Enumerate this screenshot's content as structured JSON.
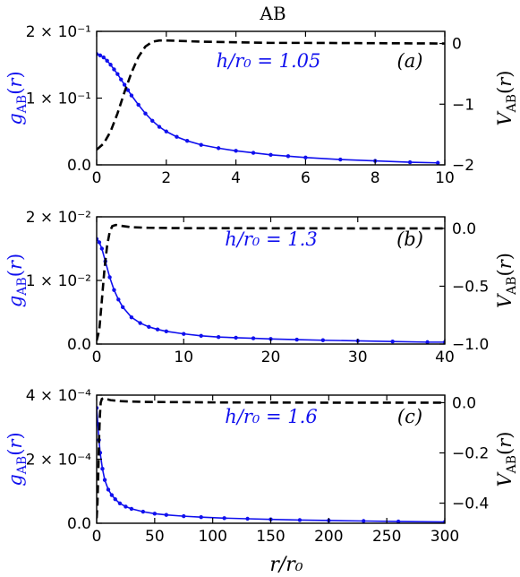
{
  "figure": {
    "title": "AB",
    "xlabel": "r/r₀"
  },
  "colors": {
    "g_series": "#1010ee",
    "v_series": "#000000"
  },
  "chart_data": [
    {
      "type": "line",
      "panel_label": "(a)",
      "annotation": "h/r₀ = 1.05",
      "xlim": [
        0,
        10
      ],
      "x_ticks": [
        0,
        2,
        4,
        6,
        8,
        10
      ],
      "left_ylabel": "g_AB(r)",
      "left_ylim": [
        0,
        0.2
      ],
      "left_ticks": [
        {
          "v": 0,
          "label": "0.0"
        },
        {
          "v": 0.1,
          "label": "1 × 10⁻¹"
        },
        {
          "v": 0.2,
          "label": "2 × 10⁻¹"
        }
      ],
      "right_ylabel": "V_AB(r)",
      "right_ylim": [
        -2,
        0.2
      ],
      "right_ticks": [
        {
          "v": 0,
          "label": "0"
        },
        {
          "v": -1,
          "label": "−1"
        },
        {
          "v": -2,
          "label": "−2"
        }
      ],
      "series": [
        {
          "name": "g_AB(r)",
          "axis": "left",
          "style": "dotted-markers",
          "x": [
            0,
            0.1,
            0.2,
            0.3,
            0.4,
            0.5,
            0.6,
            0.7,
            0.8,
            0.9,
            1.0,
            1.2,
            1.4,
            1.6,
            1.8,
            2.0,
            2.3,
            2.6,
            3.0,
            3.5,
            4.0,
            4.5,
            5.0,
            5.5,
            6.0,
            7.0,
            8.0,
            9.0,
            9.8
          ],
          "y": [
            0.166,
            0.164,
            0.161,
            0.156,
            0.15,
            0.143,
            0.136,
            0.128,
            0.12,
            0.112,
            0.104,
            0.09,
            0.077,
            0.066,
            0.057,
            0.05,
            0.042,
            0.036,
            0.03,
            0.025,
            0.021,
            0.018,
            0.015,
            0.013,
            0.011,
            0.008,
            0.006,
            0.004,
            0.003
          ]
        },
        {
          "name": "V_AB(r)",
          "axis": "right",
          "style": "dashed",
          "x": [
            0,
            0.2,
            0.4,
            0.6,
            0.8,
            1.0,
            1.2,
            1.4,
            1.6,
            1.8,
            2.0,
            2.5,
            3,
            4,
            5,
            6,
            8,
            10
          ],
          "y": [
            -1.75,
            -1.65,
            -1.45,
            -1.15,
            -0.8,
            -0.48,
            -0.22,
            -0.05,
            0.03,
            0.05,
            0.05,
            0.04,
            0.03,
            0.02,
            0.01,
            0.01,
            0.005,
            0
          ]
        }
      ]
    },
    {
      "type": "line",
      "panel_label": "(b)",
      "annotation": "h/r₀ = 1.3",
      "xlim": [
        0,
        40
      ],
      "x_ticks": [
        0,
        10,
        20,
        30,
        40
      ],
      "left_ylabel": "g_AB(r)",
      "left_ylim": [
        0,
        0.02
      ],
      "left_ticks": [
        {
          "v": 0,
          "label": "0.0"
        },
        {
          "v": 0.01,
          "label": "1 × 10⁻²"
        },
        {
          "v": 0.02,
          "label": "2 × 10⁻²"
        }
      ],
      "right_ylabel": "V_AB(r)",
      "right_ylim": [
        -1.0,
        0.1
      ],
      "right_ticks": [
        {
          "v": 0,
          "label": "0.0"
        },
        {
          "v": -0.5,
          "label": "−0.5"
        },
        {
          "v": -1.0,
          "label": "−1.0"
        }
      ],
      "series": [
        {
          "name": "g_AB(r)",
          "axis": "left",
          "style": "dotted-markers",
          "x": [
            0,
            0.3,
            0.6,
            1.0,
            1.5,
            2.0,
            2.5,
            3.0,
            4.0,
            5.0,
            6.0,
            7.0,
            8.0,
            10,
            12,
            14,
            16,
            18,
            20,
            23,
            26,
            30,
            34,
            38,
            40
          ],
          "y": [
            0.0165,
            0.016,
            0.015,
            0.013,
            0.0105,
            0.0085,
            0.007,
            0.0058,
            0.0042,
            0.0033,
            0.0027,
            0.0023,
            0.002,
            0.0016,
            0.0013,
            0.0011,
            0.001,
            0.0009,
            0.0008,
            0.0007,
            0.0006,
            0.0005,
            0.0004,
            0.0003,
            0.0003
          ]
        },
        {
          "name": "V_AB(r)",
          "axis": "right",
          "style": "dashed",
          "x": [
            0,
            0.3,
            0.6,
            0.9,
            1.2,
            1.5,
            1.8,
            2.2,
            2.6,
            3,
            4,
            6,
            10,
            20,
            30,
            40
          ],
          "y": [
            -0.97,
            -0.88,
            -0.62,
            -0.35,
            -0.15,
            -0.03,
            0.02,
            0.03,
            0.025,
            0.02,
            0.01,
            0.005,
            0.002,
            0.001,
            0,
            0
          ]
        }
      ]
    },
    {
      "type": "line",
      "panel_label": "(c)",
      "annotation": "h/r₀ = 1.6",
      "xlim": [
        0,
        300
      ],
      "x_ticks": [
        0,
        50,
        100,
        150,
        200,
        250,
        300
      ],
      "left_ylabel": "g_AB(r)",
      "left_ylim": [
        0,
        0.0004
      ],
      "left_ticks": [
        {
          "v": 0,
          "label": "0.0"
        },
        {
          "v": 0.0002,
          "label": "2 × 10⁻⁴"
        },
        {
          "v": 0.0004,
          "label": "4 × 10⁻⁴"
        }
      ],
      "right_ylabel": "V_AB(r)",
      "right_ylim": [
        -0.48,
        0.03
      ],
      "right_ticks": [
        {
          "v": 0,
          "label": "0.0"
        },
        {
          "v": -0.2,
          "label": "−0.2"
        },
        {
          "v": -0.4,
          "label": "−0.4"
        }
      ],
      "series": [
        {
          "name": "g_AB(r)",
          "axis": "left",
          "style": "dotted-markers",
          "x": [
            0,
            1,
            2,
            3,
            5,
            7,
            10,
            13,
            16,
            20,
            25,
            30,
            40,
            50,
            60,
            75,
            90,
            110,
            130,
            150,
            175,
            200,
            230,
            260,
            300
          ],
          "y": [
            0.00036,
            0.00031,
            0.00026,
            0.00022,
            0.00017,
            0.000135,
            0.000105,
            8.8e-05,
            7.5e-05,
            6.2e-05,
            5.2e-05,
            4.5e-05,
            3.6e-05,
            3e-05,
            2.6e-05,
            2.2e-05,
            1.9e-05,
            1.6e-05,
            1.4e-05,
            1.2e-05,
            1e-05,
            8.5e-06,
            7e-06,
            5.5e-06,
            4e-06
          ]
        },
        {
          "name": "V_AB(r)",
          "axis": "right",
          "style": "dashed",
          "x": [
            0,
            0.7,
            1.4,
            2.1,
            2.8,
            3.5,
            4.5,
            6,
            8,
            12,
            20,
            40,
            100,
            200,
            300
          ],
          "y": [
            -0.46,
            -0.4,
            -0.28,
            -0.14,
            -0.05,
            0.0,
            0.015,
            0.018,
            0.015,
            0.01,
            0.006,
            0.003,
            0.001,
            0,
            0
          ]
        }
      ]
    }
  ]
}
